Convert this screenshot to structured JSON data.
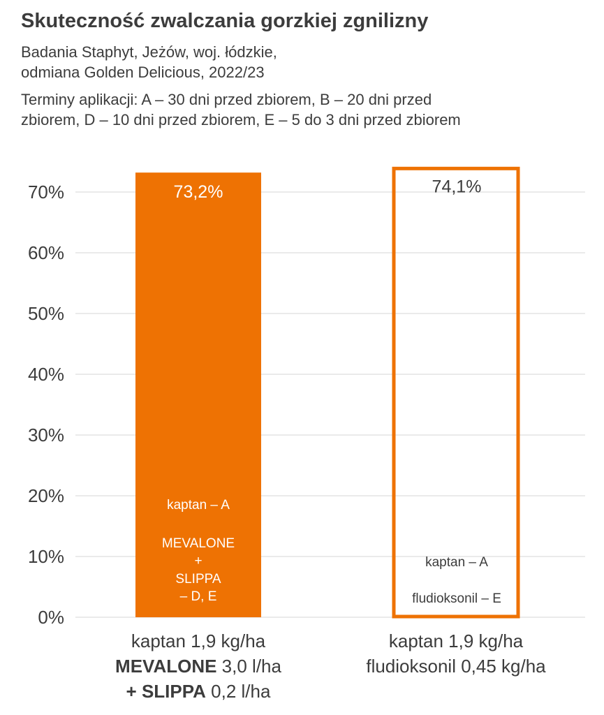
{
  "title": "Skuteczność zwalczania gorzkiej zgnilizny",
  "subtitle_lines": [
    "Badania Staphyt, Jeżów, woj. łódzkie,",
    "odmiana Golden Delicious, 2022/23"
  ],
  "terms_lines": [
    "Terminy aplikacji: A – 30 dni przed zbiorem, B – 20 dni przed",
    "zbiorem, D – 10 dni przed zbiorem, E – 5 do 3 dni przed zbiorem"
  ],
  "colors": {
    "accent": "#ee7203",
    "text": "#3c3c3c",
    "grid": "#e3e3e3",
    "white": "#ffffff"
  },
  "chart_data": {
    "type": "bar",
    "categories": [
      "kaptan 1,9 kg/ha MEVALONE 3,0 l/ha + SLIPPA 0,2 l/ha",
      "kaptan 1,9 kg/ha fludioksonil 0,45 kg/ha"
    ],
    "values": [
      73.2,
      74.1
    ],
    "unit": "%",
    "ylim": [
      0,
      70
    ],
    "yticks": [
      0,
      10,
      20,
      30,
      40,
      50,
      60,
      70
    ],
    "ytick_labels": [
      "0%",
      "10%",
      "20%",
      "30%",
      "40%",
      "50%",
      "60%",
      "70%"
    ],
    "grid": true,
    "bars": [
      {
        "value_label": "73,2%",
        "style": "filled",
        "inner_labels": [
          "kaptan – A",
          "MEVALONE",
          "+",
          "SLIPPA",
          "– D, E"
        ],
        "xlabel_lines": [
          [
            {
              "text": "kaptan 1,9 kg/ha",
              "bold": false
            }
          ],
          [
            {
              "text": "MEVALONE",
              "bold": true
            },
            {
              "text": " 3,0 l/ha",
              "bold": false
            }
          ],
          [
            {
              "text": "+ SLIPPA",
              "bold": true
            },
            {
              "text": " 0,2 l/ha",
              "bold": false
            }
          ]
        ]
      },
      {
        "value_label": "74,1%",
        "style": "outline",
        "inner_labels": [
          "kaptan – A",
          "fludioksonil – E"
        ],
        "xlabel_lines": [
          [
            {
              "text": "kaptan 1,9 kg/ha",
              "bold": false
            }
          ],
          [
            {
              "text": "fludioksonil 0,45 kg/ha",
              "bold": false
            }
          ]
        ]
      }
    ]
  }
}
